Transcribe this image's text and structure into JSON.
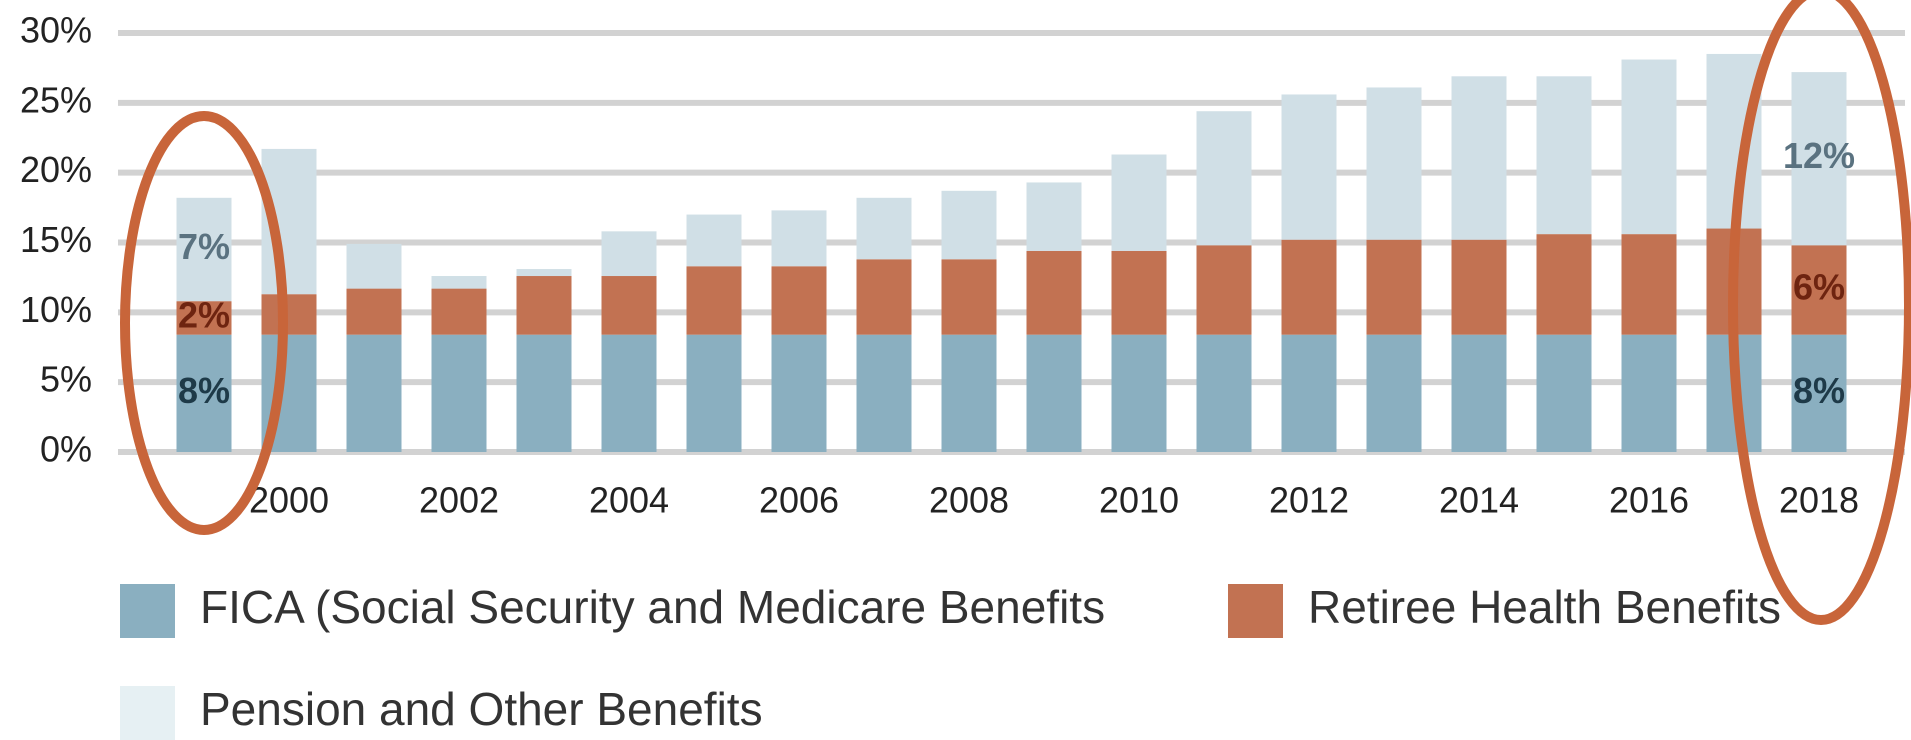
{
  "chart_data": {
    "type": "stacked_bar",
    "categories": [
      null,
      "2000",
      null,
      "2002",
      null,
      "2004",
      null,
      "2006",
      null,
      "2008",
      null,
      "2010",
      null,
      "2012",
      null,
      "2014",
      null,
      "2016",
      null,
      "2018"
    ],
    "series": [
      {
        "name": "FICA (Social Security and Medicare Benefits",
        "color": "#8aafc0",
        "values": [
          8.4,
          8.4,
          8.4,
          8.4,
          8.4,
          8.4,
          8.4,
          8.4,
          8.4,
          8.4,
          8.4,
          8.4,
          8.4,
          8.4,
          8.4,
          8.4,
          8.4,
          8.4,
          8.4,
          8.4
        ],
        "value_labels": [
          "8%",
          null,
          null,
          null,
          null,
          null,
          null,
          null,
          null,
          null,
          null,
          null,
          null,
          null,
          null,
          null,
          null,
          null,
          null,
          "8%"
        ]
      },
      {
        "name": "Retiree Health Benefits",
        "color": "#c27252",
        "values": [
          2.4,
          2.9,
          3.3,
          3.3,
          4.2,
          4.2,
          4.9,
          4.9,
          5.4,
          5.4,
          6.0,
          6.0,
          6.4,
          6.8,
          6.8,
          6.8,
          7.2,
          7.2,
          7.6,
          6.4
        ],
        "value_labels": [
          "2%",
          null,
          null,
          null,
          null,
          null,
          null,
          null,
          null,
          null,
          null,
          null,
          null,
          null,
          null,
          null,
          null,
          null,
          null,
          "6%"
        ]
      },
      {
        "name": "Pension and Other Benefits",
        "color": "#d0dfe6",
        "values": [
          7.4,
          10.4,
          3.2,
          0.9,
          0.5,
          3.2,
          3.7,
          4.0,
          4.4,
          4.9,
          4.9,
          6.9,
          9.6,
          10.4,
          10.9,
          11.7,
          11.3,
          12.5,
          12.5,
          12.4
        ],
        "value_labels": [
          "7%",
          null,
          null,
          null,
          null,
          null,
          null,
          null,
          null,
          null,
          null,
          null,
          null,
          null,
          null,
          null,
          null,
          null,
          null,
          "12%"
        ]
      }
    ],
    "ylim": [
      0,
      30
    ],
    "yticks": [
      {
        "value": 0,
        "label": "0%"
      },
      {
        "value": 5,
        "label": "5%"
      },
      {
        "value": 10,
        "label": "10%"
      },
      {
        "value": 15,
        "label": "15%"
      },
      {
        "value": 20,
        "label": "20%"
      },
      {
        "value": 25,
        "label": "25%"
      },
      {
        "value": 30,
        "label": "30%"
      }
    ],
    "grid": true
  }
}
